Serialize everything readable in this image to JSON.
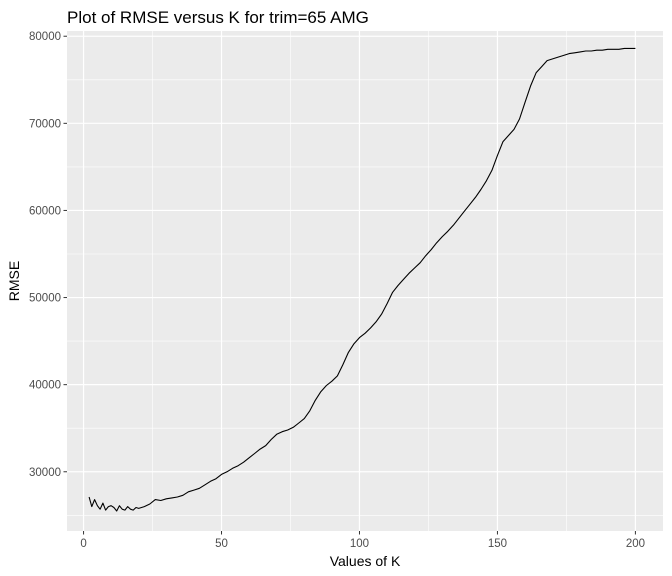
{
  "chart_data": {
    "type": "line",
    "title": "Plot of RMSE versus K for trim=65 AMG",
    "xlabel": "Values of K",
    "ylabel": "RMSE",
    "xlim": [
      -6,
      210
    ],
    "ylim": [
      23200,
      80600
    ],
    "x_ticks": [
      0,
      50,
      100,
      150,
      200
    ],
    "x_tick_labels": [
      "0",
      "50",
      "100",
      "150",
      "200"
    ],
    "y_ticks": [
      30000,
      40000,
      50000,
      60000,
      70000,
      80000
    ],
    "y_tick_labels": [
      "30000",
      "40000",
      "50000",
      "60000",
      "70000",
      "80000"
    ],
    "grid": true,
    "legend": "none",
    "series": [
      {
        "color": "#000000",
        "x": [
          2,
          3,
          4,
          5,
          6,
          7,
          8,
          9,
          10,
          11,
          12,
          13,
          14,
          15,
          16,
          17,
          18,
          19,
          20,
          22,
          24,
          26,
          28,
          30,
          32,
          34,
          36,
          38,
          40,
          42,
          44,
          46,
          48,
          50,
          52,
          54,
          56,
          58,
          60,
          62,
          64,
          66,
          68,
          70,
          72,
          74,
          76,
          78,
          80,
          82,
          84,
          86,
          88,
          90,
          92,
          94,
          96,
          98,
          100,
          102,
          104,
          106,
          108,
          110,
          112,
          114,
          116,
          118,
          120,
          122,
          124,
          126,
          128,
          130,
          132,
          134,
          136,
          138,
          140,
          142,
          144,
          146,
          148,
          150,
          152,
          154,
          156,
          158,
          160,
          162,
          164,
          166,
          168,
          170,
          172,
          174,
          176,
          178,
          180,
          182,
          184,
          186,
          188,
          190,
          192,
          194,
          196,
          198,
          200
        ],
        "y": [
          27100,
          26000,
          26800,
          26100,
          25700,
          26400,
          25600,
          26000,
          26100,
          25900,
          25500,
          26100,
          25700,
          25600,
          26000,
          25700,
          25600,
          25900,
          25800,
          26000,
          26300,
          26800,
          26700,
          26900,
          27000,
          27100,
          27300,
          27700,
          27900,
          28100,
          28500,
          28900,
          29200,
          29700,
          30000,
          30400,
          30700,
          31100,
          31600,
          32100,
          32600,
          33000,
          33700,
          34300,
          34600,
          34800,
          35100,
          35600,
          36100,
          37000,
          38200,
          39200,
          39900,
          40400,
          41000,
          42300,
          43700,
          44700,
          45400,
          45900,
          46500,
          47200,
          48100,
          49300,
          50600,
          51400,
          52100,
          52800,
          53400,
          54000,
          54800,
          55500,
          56300,
          57000,
          57600,
          58300,
          59100,
          59900,
          60700,
          61500,
          62400,
          63400,
          64600,
          66300,
          67900,
          68600,
          69300,
          70500,
          72400,
          74300,
          75800,
          76500,
          77200,
          77400,
          77600,
          77800,
          78000,
          78100,
          78200,
          78300,
          78300,
          78400,
          78400,
          78500,
          78500,
          78500,
          78600,
          78600,
          78600
        ]
      }
    ]
  }
}
